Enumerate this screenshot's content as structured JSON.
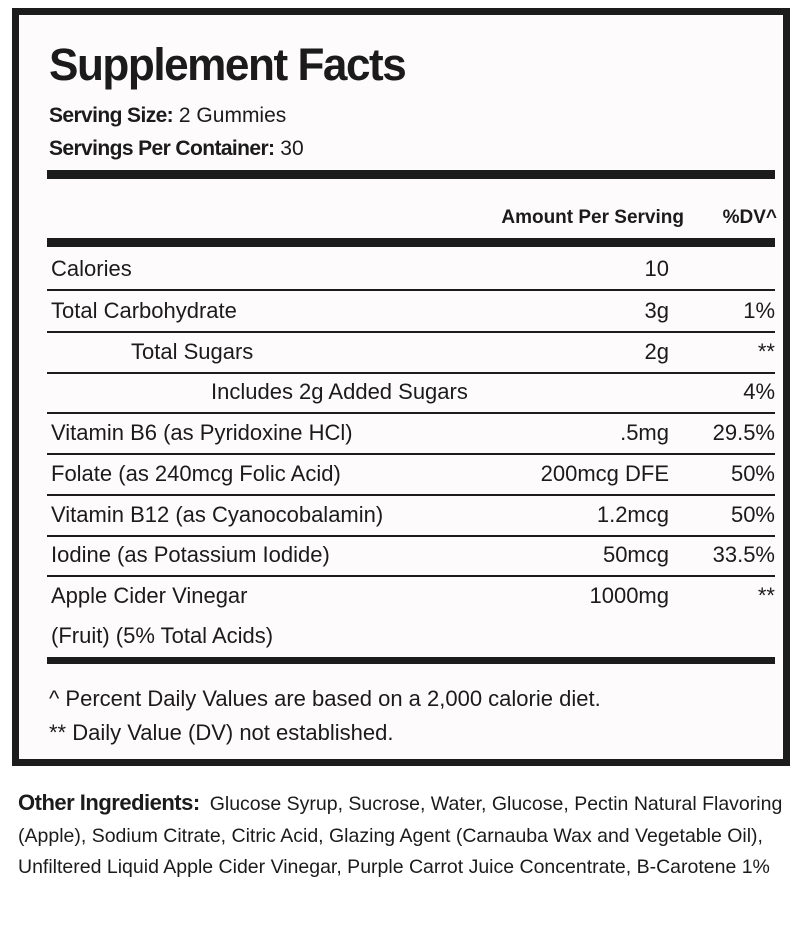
{
  "title": "Supplement Facts",
  "serving_size": {
    "label": "Serving Size:",
    "value": "2 Gummies"
  },
  "servings_per_container": {
    "label": "Servings Per Container:",
    "value": "30"
  },
  "columns": {
    "amount": "Amount Per Serving",
    "dv": "%DV^"
  },
  "rows": [
    {
      "name": "Calories",
      "amount": "10",
      "dv": ""
    },
    {
      "name": "Total Carbohydrate",
      "amount": "3g",
      "dv": "1%"
    },
    {
      "name": "Total Sugars",
      "amount": "2g",
      "dv": "**"
    },
    {
      "name": "Includes 2g Added Sugars",
      "amount": "",
      "dv": "4%"
    },
    {
      "name": "Vitamin B6 (as Pyridoxine HCl)",
      "amount": ".5mg",
      "dv": "29.5%"
    },
    {
      "name": "Folate (as 240mcg Folic Acid)",
      "amount": "200mcg DFE",
      "dv": "50%"
    },
    {
      "name": "Vitamin B12 (as Cyanocobalamin)",
      "amount": "1.2mcg",
      "dv": "50%"
    },
    {
      "name": "Iodine (as Potassium Iodide)",
      "amount": "50mcg",
      "dv": "33.5%"
    },
    {
      "name": "Apple Cider Vinegar",
      "name_line2": "(Fruit) (5% Total Acids)",
      "amount": "1000mg",
      "dv": "**"
    }
  ],
  "footnotes": [
    "^ Percent Daily Values are based on a 2,000 calorie diet.",
    "** Daily Value (DV) not established."
  ],
  "other_ingredients": {
    "label": "Other Ingredients:",
    "text": "Glucose Syrup, Sucrose, Water, Glucose, Pectin Natural Flavoring (Apple), Sodium Citrate, Citric Acid, Glazing Agent (Carnauba Wax and Vegetable Oil), Unfiltered Liquid Apple Cider Vinegar, Purple Carrot Juice Concentrate, B-Carotene 1%"
  }
}
